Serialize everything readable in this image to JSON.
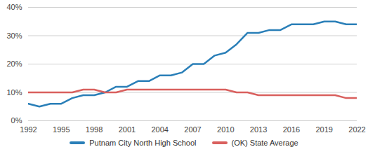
{
  "chart_data": {
    "type": "line",
    "x": [
      1992,
      1993,
      1994,
      1995,
      1996,
      1997,
      1998,
      1999,
      2000,
      2001,
      2002,
      2003,
      2004,
      2005,
      2006,
      2007,
      2008,
      2009,
      2010,
      2011,
      2012,
      2013,
      2014,
      2015,
      2016,
      2017,
      2018,
      2019,
      2020,
      2021,
      2022
    ],
    "series": [
      {
        "name": "Putnam City North High School",
        "color": "#2a7fb8",
        "values": [
          6,
          5,
          6,
          6,
          8,
          9,
          9,
          10,
          12,
          12,
          14,
          14,
          16,
          16,
          17,
          20,
          20,
          23,
          24,
          27,
          31,
          31,
          32,
          32,
          34,
          34,
          34,
          35,
          35,
          34,
          34
        ]
      },
      {
        "name": "(OK) State Average",
        "color": "#d9605e",
        "values": [
          10,
          10,
          10,
          10,
          10,
          11,
          11,
          10,
          10,
          11,
          11,
          11,
          11,
          11,
          11,
          11,
          11,
          11,
          11,
          10,
          10,
          9,
          9,
          9,
          9,
          9,
          9,
          9,
          9,
          8,
          8
        ]
      }
    ],
    "xlim": [
      1992,
      2022
    ],
    "xticks": [
      1992,
      1995,
      1998,
      2001,
      2004,
      2007,
      2010,
      2013,
      2016,
      2019,
      2022
    ],
    "ylim": [
      0,
      40
    ],
    "yticks": [
      {
        "value": 0,
        "label": "0%"
      },
      {
        "value": 10,
        "label": "10%"
      },
      {
        "value": 20,
        "label": "20%"
      },
      {
        "value": 30,
        "label": "30%"
      },
      {
        "value": 40,
        "label": "40%"
      }
    ],
    "grid": true,
    "legend": "bottom"
  }
}
